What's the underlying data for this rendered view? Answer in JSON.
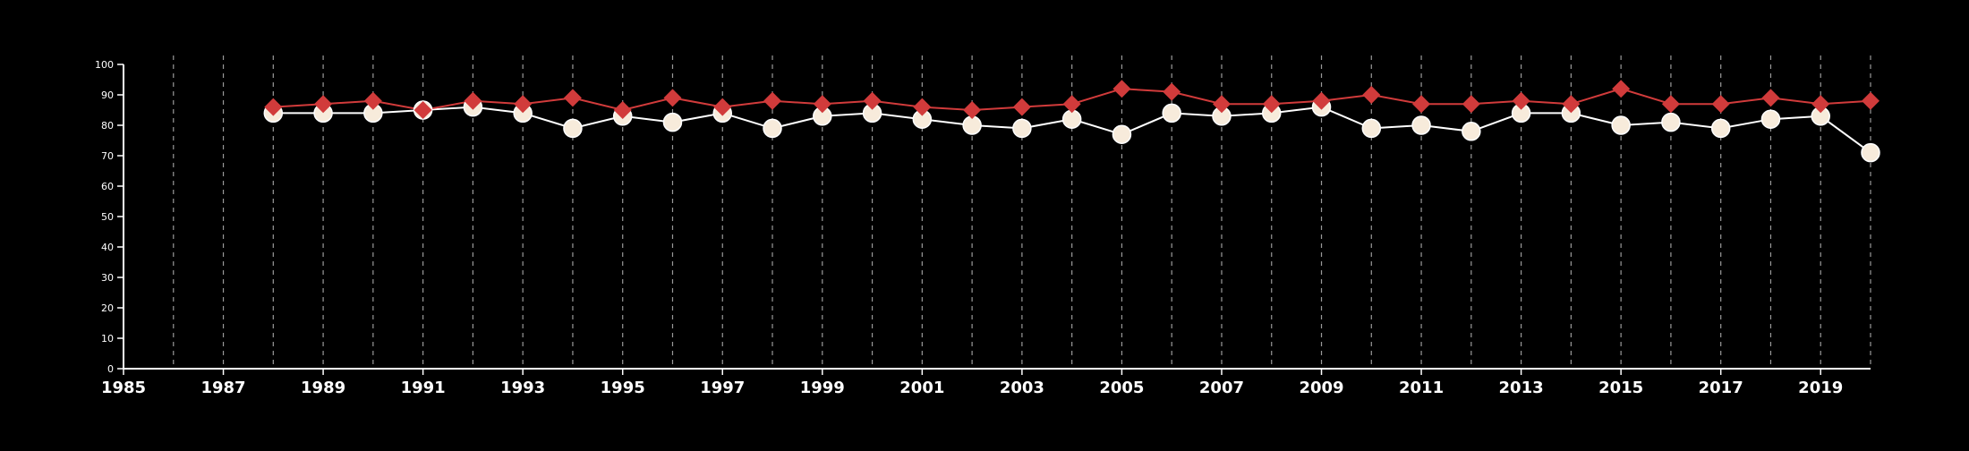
{
  "chart_data": {
    "type": "line",
    "title": "",
    "xlabel": "",
    "ylabel": "",
    "xlim": [
      1985,
      2020
    ],
    "ylim": [
      0,
      100
    ],
    "y_ticks": [
      0,
      10,
      20,
      30,
      40,
      50,
      60,
      70,
      80,
      90,
      100
    ],
    "y_tick_labels": [
      "0",
      "10",
      "20",
      "30",
      "40",
      "50",
      "60",
      "70",
      "80",
      "90",
      "100"
    ],
    "x_ticks": [
      1985,
      1987,
      1989,
      1991,
      1993,
      1995,
      1997,
      1999,
      2001,
      2003,
      2005,
      2007,
      2009,
      2011,
      2013,
      2015,
      2017,
      2019
    ],
    "x_tick_labels": [
      "1985",
      "1987",
      "1989",
      "1991",
      "1993",
      "1995",
      "1997",
      "1999",
      "2001",
      "2003",
      "2005",
      "2007",
      "2009",
      "2011",
      "2013",
      "2015",
      "2017",
      "2019"
    ],
    "vertical_gridlines_years": [
      1986,
      1987,
      1988,
      1989,
      1990,
      1991,
      1992,
      1993,
      1994,
      1995,
      1996,
      1997,
      1998,
      1999,
      2000,
      2001,
      2002,
      2003,
      2004,
      2005,
      2006,
      2007,
      2008,
      2009,
      2010,
      2011,
      2012,
      2013,
      2014,
      2015,
      2016,
      2017,
      2018,
      2019,
      2020
    ],
    "grid": "vertical dashed",
    "legend": "none",
    "x": [
      1988,
      1989,
      1990,
      1991,
      1992,
      1993,
      1994,
      1995,
      1996,
      1997,
      1998,
      1999,
      2000,
      2001,
      2002,
      2003,
      2004,
      2005,
      2006,
      2007,
      2008,
      2009,
      2010,
      2011,
      2012,
      2013,
      2014,
      2015,
      2016,
      2017,
      2018,
      2019,
      2020
    ],
    "series": [
      {
        "marker": "diamond",
        "color": "#d13b3b",
        "values": [
          86,
          87,
          88,
          85,
          88,
          87,
          89,
          85,
          89,
          86,
          88,
          87,
          88,
          86,
          85,
          86,
          87,
          92,
          91,
          87,
          87,
          88,
          90,
          87,
          87,
          88,
          87,
          92,
          87,
          87,
          89,
          87,
          88
        ]
      },
      {
        "marker": "circle",
        "color": "#f7ebdb",
        "line_color": "#ffffff",
        "values": [
          84,
          84,
          84,
          85,
          86,
          84,
          79,
          83,
          81,
          84,
          79,
          83,
          84,
          82,
          80,
          79,
          82,
          77,
          84,
          83,
          84,
          86,
          79,
          80,
          78,
          84,
          84,
          80,
          81,
          79,
          82,
          83,
          71
        ]
      }
    ]
  }
}
